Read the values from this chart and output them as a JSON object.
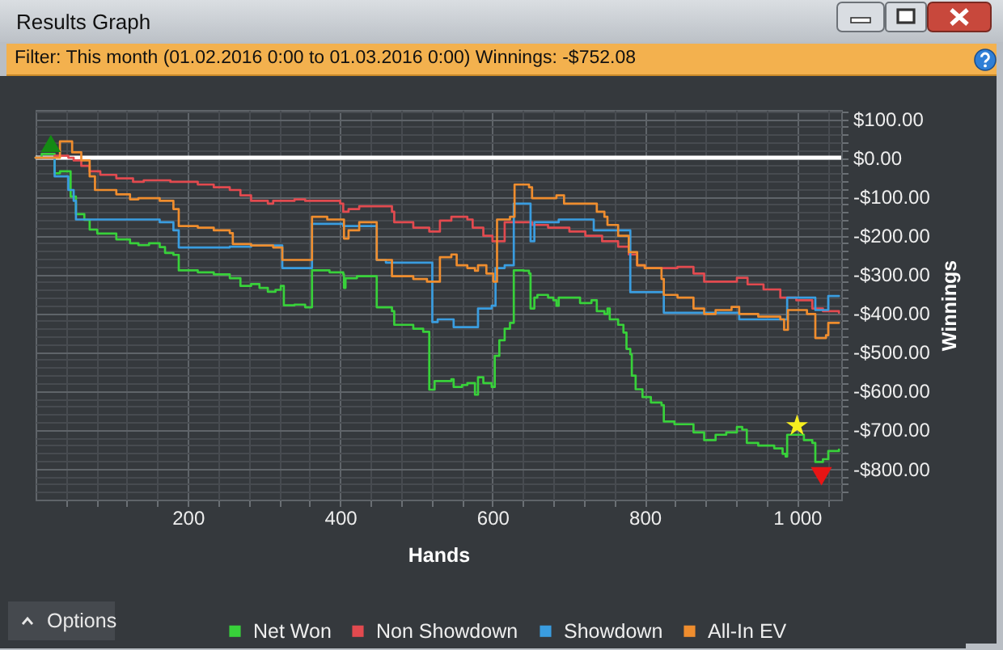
{
  "chart_data": {
    "type": "step",
    "title": "Results Graph",
    "subtitle": "Filter: This month (01.02.2016 0:00 to 01.03.2016 0:00) Winnings: -$752.08",
    "xlabel": "Hands",
    "ylabel": "Winnings",
    "annotations": [
      "Options"
    ],
    "xlim": [
      0,
      1058
    ],
    "ylim": [
      -880,
      123
    ],
    "xticks": [
      {
        "value": 40,
        "label": null
      },
      {
        "value": 80,
        "label": null
      },
      {
        "value": 120,
        "label": null
      },
      {
        "value": 160,
        "label": null
      },
      200,
      {
        "value": 240,
        "label": null
      },
      {
        "value": 280,
        "label": null
      },
      {
        "value": 320,
        "label": null
      },
      {
        "value": 360,
        "label": null
      },
      400,
      {
        "value": 440,
        "label": null
      },
      {
        "value": 480,
        "label": null
      },
      {
        "value": 520,
        "label": null
      },
      {
        "value": 560,
        "label": null
      },
      600,
      {
        "value": 640,
        "label": null
      },
      {
        "value": 680,
        "label": null
      },
      {
        "value": 720,
        "label": null
      },
      {
        "value": 760,
        "label": null
      },
      800,
      {
        "value": 840,
        "label": null
      },
      {
        "value": 880,
        "label": null
      },
      {
        "value": 920,
        "label": null
      },
      {
        "value": 960,
        "label": null
      },
      {
        "value": 1000,
        "label": "1 000"
      },
      {
        "value": 1040,
        "label": null
      }
    ],
    "yticks": [
      {
        "value": -860,
        "label": null
      },
      {
        "value": -840,
        "label": null
      },
      {
        "value": -820,
        "label": null
      },
      {
        "value": -800,
        "label": "-$800.00"
      },
      {
        "value": -780,
        "label": null
      },
      {
        "value": -760,
        "label": null
      },
      {
        "value": -740,
        "label": null
      },
      {
        "value": -720,
        "label": null
      },
      {
        "value": -700,
        "label": "-$700.00"
      },
      {
        "value": -680,
        "label": null
      },
      {
        "value": -660,
        "label": null
      },
      {
        "value": -640,
        "label": null
      },
      {
        "value": -620,
        "label": null
      },
      {
        "value": -600,
        "label": "-$600.00"
      },
      {
        "value": -580,
        "label": null
      },
      {
        "value": -560,
        "label": null
      },
      {
        "value": -540,
        "label": null
      },
      {
        "value": -520,
        "label": null
      },
      {
        "value": -500,
        "label": "-$500.00"
      },
      {
        "value": -480,
        "label": null
      },
      {
        "value": -460,
        "label": null
      },
      {
        "value": -440,
        "label": null
      },
      {
        "value": -420,
        "label": null
      },
      {
        "value": -400,
        "label": "-$400.00"
      },
      {
        "value": -380,
        "label": null
      },
      {
        "value": -360,
        "label": null
      },
      {
        "value": -340,
        "label": null
      },
      {
        "value": -320,
        "label": null
      },
      {
        "value": -300,
        "label": "-$300.00"
      },
      {
        "value": -280,
        "label": null
      },
      {
        "value": -260,
        "label": null
      },
      {
        "value": -240,
        "label": null
      },
      {
        "value": -220,
        "label": null
      },
      {
        "value": -200,
        "label": "-$200.00"
      },
      {
        "value": -180,
        "label": null
      },
      {
        "value": -160,
        "label": null
      },
      {
        "value": -140,
        "label": null
      },
      {
        "value": -120,
        "label": null
      },
      {
        "value": -100,
        "label": "-$100.00"
      },
      {
        "value": -80,
        "label": null
      },
      {
        "value": -60,
        "label": null
      },
      {
        "value": -40,
        "label": null
      },
      {
        "value": -20,
        "label": null
      },
      {
        "value": 0,
        "label": "$0.00"
      },
      {
        "value": 20,
        "label": null
      },
      {
        "value": 40,
        "label": null
      },
      {
        "value": 60,
        "label": null
      },
      {
        "value": 80,
        "label": null
      },
      {
        "value": 100,
        "label": "$100.00"
      },
      {
        "value": 120,
        "label": null
      }
    ],
    "grid": true,
    "legend": "bottom",
    "ref_lines": [
      {
        "axis": "y",
        "value": 0,
        "color": "#ffffff"
      }
    ],
    "series": [
      {
        "name": "Net Won",
        "color": "#38d13a",
        "x": [
          0,
          8,
          25,
          32,
          46,
          53,
          64,
          71,
          81,
          106,
          124,
          135,
          149,
          163,
          170,
          181,
          188,
          213,
          234,
          255,
          269,
          283,
          294,
          305,
          315,
          322,
          326,
          340,
          354,
          363,
          386,
          404,
          405,
          407,
          422,
          448,
          468,
          471,
          496,
          509,
          517,
          524,
          546,
          549,
          560,
          567,
          577,
          581,
          588,
          599,
          603,
          609,
          616,
          623,
          628,
          641,
          648,
          650,
          655,
          659,
          673,
          680,
          684,
          687,
          715,
          730,
          737,
          747,
          751,
          754,
          765,
          772,
          776,
          781,
          783,
          788,
          797,
          808,
          822,
          825,
          839,
          864,
          878,
          893,
          907,
          921,
          928,
          934,
          949,
          970,
          981,
          985,
          987,
          1009,
          1020,
          1024,
          1034,
          1041,
          1055
        ],
        "values": [
          0,
          10,
          -40,
          -35,
          -100,
          -145,
          -160,
          -185,
          -195,
          -210,
          -220,
          -225,
          -220,
          -230,
          -245,
          -250,
          -290,
          -295,
          -300,
          -310,
          -330,
          -325,
          -335,
          -345,
          -340,
          -330,
          -380,
          -378,
          -385,
          -290,
          -295,
          -300,
          -335,
          -310,
          -305,
          -385,
          -395,
          -430,
          -440,
          -448,
          -597,
          -575,
          -570,
          -590,
          -585,
          -580,
          -610,
          -565,
          -580,
          -590,
          -510,
          -470,
          -440,
          -425,
          -290,
          -291,
          -298,
          -388,
          -360,
          -353,
          -360,
          -367,
          -381,
          -360,
          -374,
          -367,
          -395,
          -402,
          -388,
          -416,
          -430,
          -450,
          -492,
          -506,
          -561,
          -596,
          -616,
          -630,
          -637,
          -679,
          -686,
          -707,
          -727,
          -713,
          -707,
          -693,
          -700,
          -734,
          -741,
          -748,
          -762,
          -769,
          -713,
          -727,
          -734,
          -783,
          -776,
          -755,
          -751
        ]
      },
      {
        "name": "Non Showdown",
        "color": "#e24a4f",
        "x": [
          0,
          25,
          43,
          50,
          60,
          71,
          85,
          106,
          128,
          142,
          177,
          213,
          234,
          255,
          269,
          283,
          305,
          312,
          340,
          354,
          400,
          404,
          411,
          425,
          468,
          471,
          496,
          517,
          531,
          546,
          567,
          574,
          588,
          600,
          616,
          652,
          673,
          701,
          722,
          744,
          765,
          779,
          790,
          800,
          843,
          864,
          878,
          900,
          921,
          935,
          956,
          978,
          999,
          1020,
          1034,
          1055
        ],
        "values": [
          0,
          5,
          0,
          -7,
          -21,
          -35,
          -44,
          -53,
          -62,
          -58,
          -62,
          -69,
          -76,
          -83,
          -97,
          -111,
          -118,
          -111,
          -107,
          -111,
          -118,
          -139,
          -132,
          -125,
          -139,
          -166,
          -180,
          -190,
          -162,
          -152,
          -159,
          -180,
          -201,
          -215,
          -166,
          -173,
          -180,
          -190,
          -201,
          -215,
          -229,
          -249,
          -277,
          -284,
          -281,
          -298,
          -319,
          -319,
          -309,
          -326,
          -339,
          -360,
          -367,
          -388,
          -395,
          -399
        ]
      },
      {
        "name": "Showdown",
        "color": "#3a9de0",
        "x": [
          0,
          25,
          43,
          50,
          53,
          163,
          181,
          188,
          255,
          283,
          324,
          363,
          404,
          448,
          460,
          521,
          528,
          549,
          581,
          599,
          604,
          616,
          628,
          650,
          655,
          684,
          687,
          733,
          781,
          825,
          924,
          987,
          1024,
          1041,
          1055
        ],
        "values": [
          0,
          -48,
          -83,
          -111,
          -159,
          -166,
          -187,
          -231,
          -229,
          -226,
          -284,
          -170,
          -176,
          -263,
          -270,
          -423,
          -416,
          -436,
          -388,
          -381,
          -284,
          -277,
          -118,
          -215,
          -166,
          -166,
          -159,
          -187,
          -346,
          -399,
          -416,
          -360,
          -392,
          -356,
          -356
        ]
      },
      {
        "name": "All-In EV",
        "color": "#ef8d2e",
        "x": [
          0,
          32,
          48,
          60,
          71,
          78,
          106,
          124,
          135,
          163,
          181,
          188,
          213,
          234,
          255,
          259,
          283,
          312,
          324,
          363,
          383,
          405,
          411,
          425,
          448,
          468,
          496,
          514,
          531,
          546,
          553,
          567,
          577,
          581,
          592,
          601,
          606,
          623,
          629,
          648,
          652,
          684,
          694,
          737,
          747,
          751,
          765,
          779,
          790,
          800,
          822,
          825,
          843,
          864,
          878,
          893,
          914,
          924,
          949,
          978,
          983,
          988,
          1013,
          1024,
          1038,
          1041,
          1055
        ],
        "values": [
          0,
          42,
          14,
          -7,
          -48,
          -83,
          -94,
          -107,
          -104,
          -111,
          -132,
          -176,
          -180,
          -187,
          -194,
          -222,
          -226,
          -231,
          -263,
          -152,
          -159,
          -208,
          -187,
          -166,
          -263,
          -305,
          -312,
          -319,
          -256,
          -249,
          -277,
          -284,
          -291,
          -277,
          -298,
          -319,
          -159,
          -152,
          -69,
          -76,
          -104,
          -97,
          -118,
          -139,
          -152,
          -173,
          -201,
          -243,
          -277,
          -284,
          -312,
          -353,
          -360,
          -388,
          -402,
          -392,
          -384,
          -402,
          -409,
          -416,
          -443,
          -392,
          -402,
          -464,
          -457,
          -425,
          -425
        ]
      },
      {
        "type": "scatter",
        "marker": "triangle",
        "color": "#148a14",
        "x": [
          20
        ],
        "values": [
          37
        ]
      },
      {
        "type": "scatter",
        "marker": "star",
        "color": "#f7ef1f",
        "x": [
          1000
        ],
        "values": [
          -690
        ]
      },
      {
        "type": "scatter",
        "marker": "triangle-down",
        "color": "#e81515",
        "x": [
          1032
        ],
        "values": [
          -820
        ]
      }
    ]
  }
}
